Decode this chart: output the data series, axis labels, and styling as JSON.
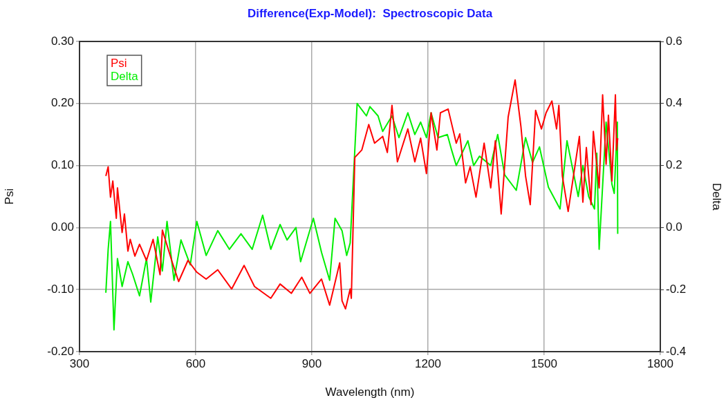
{
  "chart_data": {
    "type": "line",
    "title": "Difference(Exp-Model):  Spectroscopic Data",
    "xlabel": "Wavelength (nm)",
    "ylabel": "Psi",
    "y2label": "Delta",
    "xlim": [
      300,
      1800
    ],
    "xticks": [
      300,
      600,
      900,
      1200,
      1500,
      1800
    ],
    "ylim": [
      -0.2,
      0.3
    ],
    "yticks": [
      {
        "value": -0.2,
        "label": "-0.20"
      },
      {
        "value": -0.1,
        "label": "-0.10"
      },
      {
        "value": 0,
        "label": "0.00"
      },
      {
        "value": 0.1,
        "label": "0.10"
      },
      {
        "value": 0.2,
        "label": "0.20"
      },
      {
        "value": 0.3,
        "label": "0.30"
      }
    ],
    "y2lim": [
      -0.4,
      0.6
    ],
    "y2ticks": [
      -0.4,
      -0.2,
      {
        "value": 0,
        "label": "0.0"
      },
      0.2,
      0.4,
      0.6
    ],
    "grid": true,
    "legend": "top left",
    "marker": "none",
    "line_style": "solid",
    "series": [
      {
        "name": "Psi",
        "color": "#ff0000",
        "x": [
          368,
          374,
          380,
          386,
          395,
          398,
          410,
          416,
          425,
          431,
          443,
          455,
          473,
          490,
          508,
          514,
          538,
          556,
          580,
          603,
          627,
          657,
          693,
          725,
          752,
          794,
          818,
          847,
          874,
          895,
          925,
          946,
          972,
          978,
          987,
          999,
          1002,
          1011,
          1029,
          1047,
          1062,
          1083,
          1095,
          1107,
          1121,
          1148,
          1166,
          1181,
          1196,
          1208,
          1223,
          1232,
          1252,
          1273,
          1282,
          1297,
          1309,
          1324,
          1345,
          1362,
          1374,
          1389,
          1407,
          1425,
          1440,
          1452,
          1464,
          1478,
          1493,
          1505,
          1520,
          1532,
          1538,
          1547,
          1562,
          1591,
          1600,
          1609,
          1621,
          1627,
          1642,
          1651,
          1660,
          1666,
          1675,
          1684,
          1687,
          1690
        ],
        "values": [
          0.083,
          0.098,
          0.049,
          0.075,
          0.015,
          0.064,
          -0.008,
          0.022,
          -0.038,
          -0.019,
          -0.046,
          -0.027,
          -0.053,
          -0.019,
          -0.076,
          -0.004,
          -0.053,
          -0.087,
          -0.053,
          -0.072,
          -0.083,
          -0.068,
          -0.099,
          -0.061,
          -0.095,
          -0.114,
          -0.091,
          -0.106,
          -0.08,
          -0.106,
          -0.083,
          -0.125,
          -0.057,
          -0.118,
          -0.131,
          -0.099,
          -0.114,
          0.113,
          0.125,
          0.166,
          0.136,
          0.147,
          0.121,
          0.197,
          0.106,
          0.159,
          0.106,
          0.144,
          0.087,
          0.185,
          0.125,
          0.185,
          0.191,
          0.136,
          0.151,
          0.072,
          0.098,
          0.049,
          0.136,
          0.064,
          0.14,
          0.022,
          0.178,
          0.238,
          0.163,
          0.083,
          0.037,
          0.189,
          0.159,
          0.185,
          0.204,
          0.159,
          0.197,
          0.083,
          0.026,
          0.147,
          0.041,
          0.129,
          0.037,
          0.155,
          0.064,
          0.214,
          0.102,
          0.181,
          0.075,
          0.214,
          0.125,
          0.144
        ]
      },
      {
        "name": "Delta",
        "color": "#00ee00",
        "axis": "y2",
        "x": [
          368,
          374,
          380,
          389,
          398,
          410,
          425,
          437,
          455,
          473,
          484,
          502,
          514,
          526,
          544,
          562,
          586,
          603,
          627,
          657,
          687,
          717,
          746,
          773,
          794,
          818,
          836,
          859,
          871,
          904,
          925,
          946,
          960,
          978,
          990,
          999,
          1017,
          1041,
          1050,
          1071,
          1083,
          1107,
          1125,
          1148,
          1166,
          1181,
          1196,
          1208,
          1226,
          1250,
          1261,
          1273,
          1303,
          1318,
          1333,
          1362,
          1380,
          1398,
          1428,
          1452,
          1470,
          1488,
          1511,
          1541,
          1559,
          1588,
          1600,
          1615,
          1630,
          1636,
          1642,
          1660,
          1675,
          1681,
          1689,
          1690
        ],
        "values": [
          -0.21,
          -0.07,
          0.02,
          -0.33,
          -0.1,
          -0.19,
          -0.11,
          -0.15,
          -0.22,
          -0.1,
          -0.24,
          -0.03,
          -0.14,
          0.02,
          -0.17,
          -0.04,
          -0.12,
          0.02,
          -0.09,
          -0.01,
          -0.07,
          -0.02,
          -0.07,
          0.04,
          -0.07,
          0.01,
          -0.04,
          0,
          -0.11,
          0.03,
          -0.08,
          -0.17,
          0.03,
          -0.01,
          -0.09,
          -0.05,
          0.4,
          0.36,
          0.39,
          0.36,
          0.31,
          0.36,
          0.29,
          0.37,
          0.3,
          0.34,
          0.29,
          0.37,
          0.29,
          0.3,
          0.25,
          0.2,
          0.28,
          0.2,
          0.23,
          0.2,
          0.3,
          0.17,
          0.12,
          0.29,
          0.21,
          0.26,
          0.13,
          0.06,
          0.28,
          0.1,
          0.2,
          0.1,
          0.06,
          0.24,
          -0.07,
          0.34,
          0.14,
          0.11,
          0.34,
          -0.02
        ]
      }
    ]
  }
}
